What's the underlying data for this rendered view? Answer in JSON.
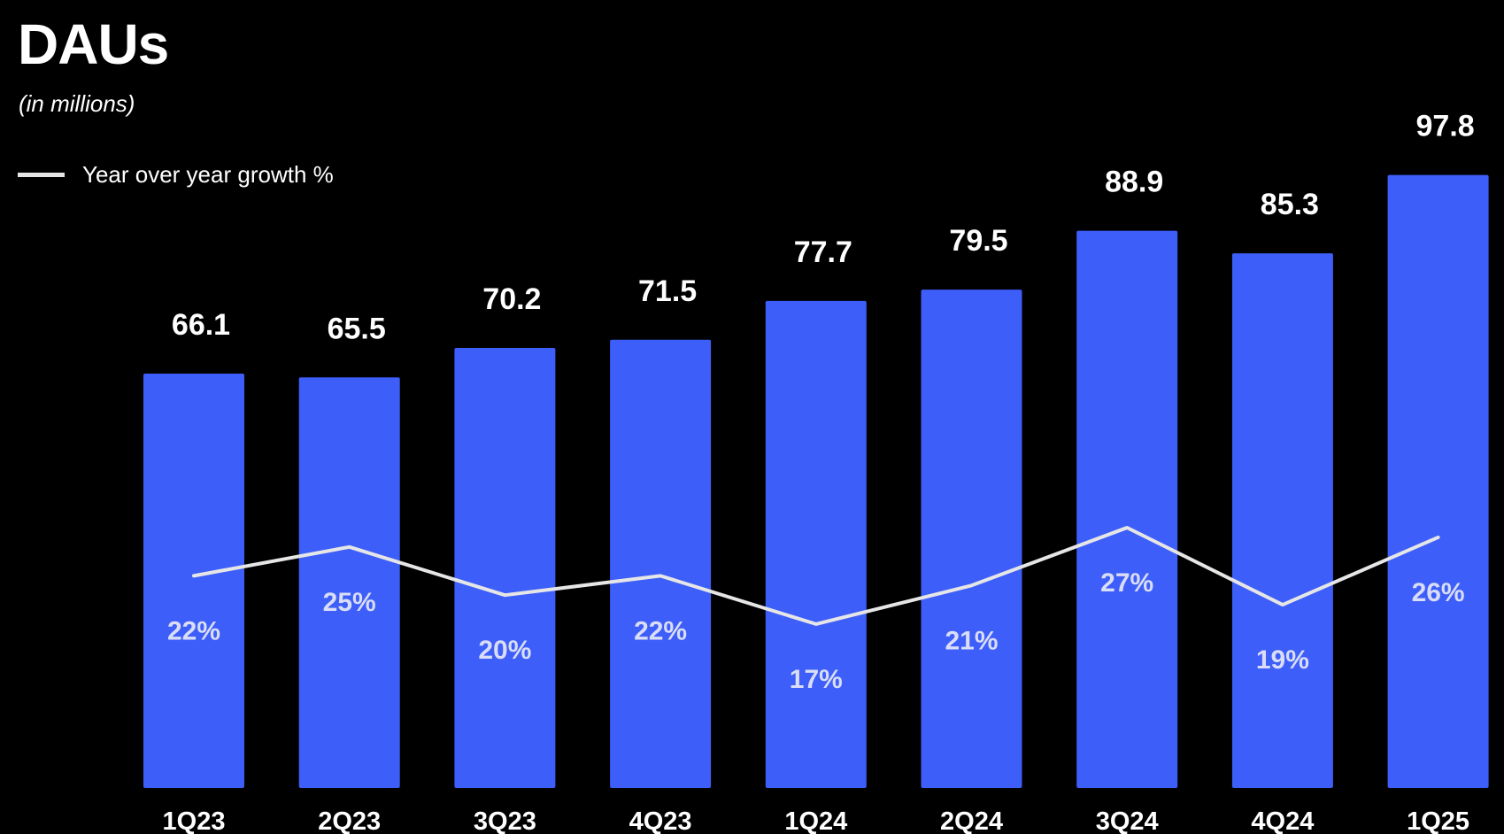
{
  "chart_data": {
    "type": "bar",
    "title": "DAUs",
    "subtitle": "(in millions)",
    "categories": [
      "1Q23",
      "2Q23",
      "3Q23",
      "4Q23",
      "1Q24",
      "2Q24",
      "3Q24",
      "4Q24",
      "1Q25"
    ],
    "series": [
      {
        "type": "bar",
        "values": [
          66.1,
          65.5,
          70.2,
          71.5,
          77.7,
          79.5,
          88.9,
          85.3,
          97.8
        ],
        "value_labels": [
          "66.1",
          "65.5",
          "70.2",
          "71.5",
          "77.7",
          "79.5",
          "88.9",
          "85.3",
          "97.8"
        ],
        "color": "#3d5ef8"
      },
      {
        "type": "line",
        "name": "Year over year growth %",
        "values": [
          22,
          25,
          20,
          22,
          17,
          21,
          27,
          19,
          26
        ],
        "value_labels": [
          "22%",
          "25%",
          "20%",
          "22%",
          "17%",
          "21%",
          "27%",
          "19%",
          "26%"
        ],
        "color": "#e6e6e6"
      }
    ],
    "ylim": [
      0,
      100
    ],
    "growth_range": [
      0,
      45
    ],
    "grid": false,
    "legend": "top-left",
    "background": "#000000"
  }
}
